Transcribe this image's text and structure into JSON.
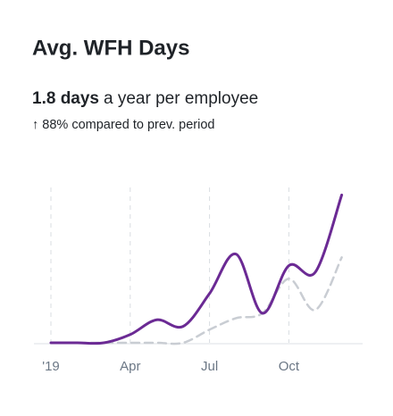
{
  "header": {
    "title": "Avg. WFH Days",
    "headline_bold": "1.8 days",
    "headline_rest": "a year per employee",
    "comparison": "↑ 88% compared to prev. period"
  },
  "chart_data": {
    "type": "line",
    "categories": [
      "'19",
      null,
      null,
      "Apr",
      null,
      null,
      "Jul",
      null,
      null,
      "Oct",
      null,
      null
    ],
    "series": [
      {
        "color": "#6b2a94",
        "dash": false,
        "values": [
          0,
          0,
          0,
          5,
          14,
          10,
          30,
          54,
          18,
          47,
          43,
          90
        ]
      },
      {
        "color": "#c9cdd3",
        "dash": true,
        "values": [
          0,
          0,
          0,
          0,
          0,
          0,
          8,
          15,
          18,
          39,
          20,
          52
        ]
      }
    ],
    "ylim": [
      0,
      100
    ],
    "grid": true
  }
}
